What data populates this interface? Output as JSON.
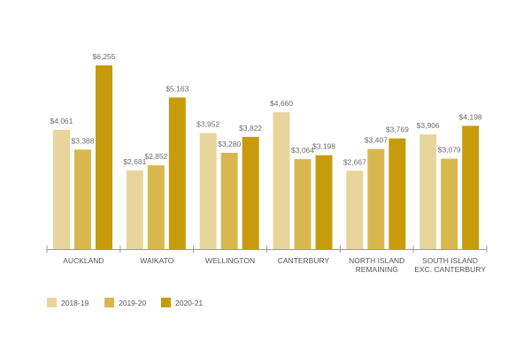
{
  "chart_data": {
    "type": "bar",
    "title": "",
    "xlabel": "",
    "ylabel": "",
    "ylim": [
      0,
      6255
    ],
    "grid": false,
    "legend_position": "bottom-left",
    "categories": [
      [
        "AUCKLAND"
      ],
      [
        "WAIKATO"
      ],
      [
        "WELLINGTON"
      ],
      [
        "CANTERBURY"
      ],
      [
        "NORTH ISLAND",
        "REMAINING"
      ],
      [
        "SOUTH ISLAND",
        "EXC. CANTERBURY"
      ]
    ],
    "series": [
      {
        "name": "2018-19",
        "color": "#e8d59b",
        "values": [
          4061,
          2681,
          3952,
          4660,
          2667,
          3906
        ],
        "labels": [
          "$4,061",
          "$2,681",
          "$3,952",
          "$4,660",
          "$2,667",
          "$3,906"
        ]
      },
      {
        "name": "2019-20",
        "color": "#d8b74e",
        "values": [
          3388,
          2852,
          3280,
          3064,
          3407,
          3079
        ],
        "labels": [
          "$3,388",
          "$2,852",
          "$3,280",
          "$3,064",
          "$3,407",
          "$3,079"
        ]
      },
      {
        "name": "2020-21",
        "color": "#c69c0c",
        "values": [
          6255,
          5163,
          3822,
          3198,
          3769,
          4198
        ],
        "labels": [
          "$6,255",
          "$5,163",
          "$3,822",
          "$3,198",
          "$3,769",
          "$4,198"
        ]
      }
    ]
  }
}
